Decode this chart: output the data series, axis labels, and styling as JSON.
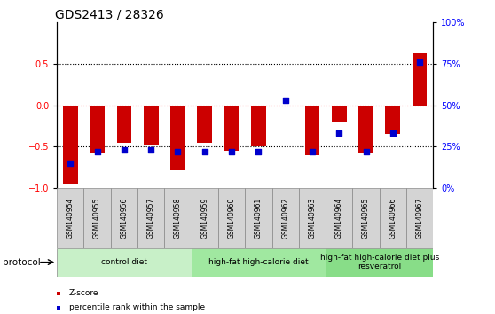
{
  "title": "GDS2413 / 28326",
  "samples": [
    "GSM140954",
    "GSM140955",
    "GSM140956",
    "GSM140957",
    "GSM140958",
    "GSM140959",
    "GSM140960",
    "GSM140961",
    "GSM140962",
    "GSM140963",
    "GSM140964",
    "GSM140965",
    "GSM140966",
    "GSM140967"
  ],
  "zscore": [
    -0.95,
    -0.58,
    -0.45,
    -0.47,
    -0.78,
    -0.45,
    -0.55,
    -0.5,
    -0.01,
    -0.6,
    -0.2,
    -0.58,
    -0.35,
    0.62
  ],
  "pct_rank": [
    15,
    22,
    23,
    23,
    22,
    22,
    22,
    22,
    53,
    22,
    33,
    22,
    33,
    76
  ],
  "ylim_left": [
    -1.0,
    1.0
  ],
  "left_yticks": [
    -1.0,
    -0.5,
    0.0,
    0.5
  ],
  "right_yticks": [
    0,
    25,
    50,
    75,
    100
  ],
  "right_yticklabels": [
    "0%",
    "25%",
    "50%",
    "75%",
    "100%"
  ],
  "bar_color": "#cc0000",
  "dot_color": "#0000cc",
  "protocols": [
    {
      "label": "control diet",
      "start": 0,
      "end": 5,
      "color": "#c8f0c8"
    },
    {
      "label": "high-fat high-calorie diet",
      "start": 5,
      "end": 10,
      "color": "#a0e8a0"
    },
    {
      "label": "high-fat high-calorie diet plus\nresveratrol",
      "start": 10,
      "end": 14,
      "color": "#88dd88"
    }
  ],
  "protocol_label": "protocol",
  "legend_items": [
    {
      "color": "#cc0000",
      "label": "Z-score"
    },
    {
      "color": "#0000cc",
      "label": "percentile rank within the sample"
    }
  ],
  "title_fontsize": 10,
  "tick_fontsize": 7,
  "label_fontsize": 7.5,
  "sample_fontsize": 5.5,
  "proto_fontsize": 6.5
}
